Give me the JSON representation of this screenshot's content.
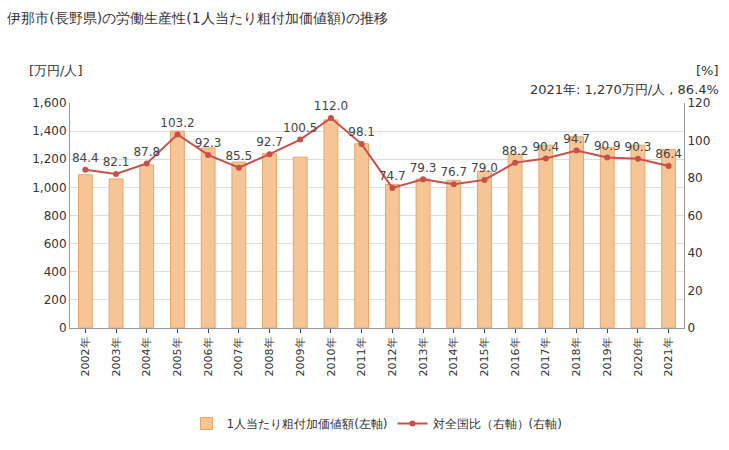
{
  "chart_data": {
    "type": "bar",
    "title": "伊那市(長野県)の労働生産性(1人当たり粗付加価値額)の推移",
    "y_label": "[万円/人]",
    "y2_label": "[%]",
    "annotations": [
      "2021年: 1,270万円/人 , 86.4%"
    ],
    "categories": [
      "2002年",
      "2003年",
      "2004年",
      "2005年",
      "2006年",
      "2007年",
      "2008年",
      "2009年",
      "2010年",
      "2011年",
      "2012年",
      "2013年",
      "2014年",
      "2015年",
      "2016年",
      "2017年",
      "2018年",
      "2019年",
      "2020年",
      "2021年"
    ],
    "series": [
      {
        "name": "1人当たり粗付加価値額(左軸)",
        "type": "bar",
        "color": "#f5c596",
        "values": [
          1090,
          1060,
          1160,
          1400,
          1280,
          1180,
          1240,
          1215,
          1480,
          1310,
          1020,
          1060,
          1050,
          1115,
          1235,
          1300,
          1360,
          1285,
          1300,
          1270
        ]
      },
      {
        "name": "対全国比（右軸）(右軸)",
        "type": "line",
        "axis": "y2",
        "color": "#c8504b",
        "marker": "circle",
        "data_labels": true,
        "values": [
          84.4,
          82.1,
          87.8,
          103.2,
          92.3,
          85.5,
          92.7,
          100.5,
          112.0,
          98.1,
          74.7,
          79.3,
          76.7,
          79.0,
          88.2,
          90.4,
          94.7,
          90.9,
          90.3,
          86.4
        ],
        "value_labels": [
          "84.4",
          "82.1",
          "87.8",
          "103.2",
          "92.3",
          "85.5",
          "92.7",
          "100.5",
          "112.0",
          "98.1",
          "74.7",
          "79.3",
          "76.7",
          "79.0",
          "88.2",
          "90.4",
          "94.7",
          "90.9",
          "90.3",
          "86.4"
        ]
      }
    ],
    "ylim": [
      0,
      1600
    ],
    "yticks": [
      0,
      200,
      400,
      600,
      800,
      {
        "value": 1000,
        "label": "1,000"
      },
      {
        "value": 1200,
        "label": "1,200"
      },
      {
        "value": 1400,
        "label": "1,400"
      },
      {
        "value": 1600,
        "label": "1,600"
      }
    ],
    "y2lim": [
      0,
      120
    ],
    "y2ticks": [
      0,
      20,
      40,
      60,
      80,
      100,
      120
    ],
    "grid": true,
    "legend": "bottom"
  }
}
